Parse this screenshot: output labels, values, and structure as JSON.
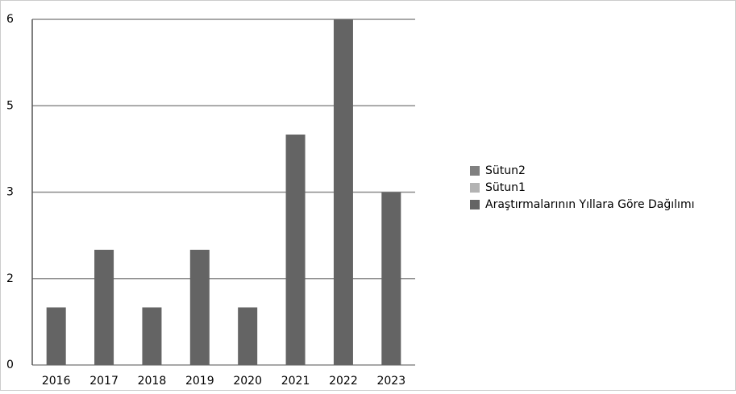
{
  "chart_data": {
    "type": "bar",
    "categories": [
      "2016",
      "2017",
      "2018",
      "2019",
      "2020",
      "2021",
      "2022",
      "2023"
    ],
    "series": [
      {
        "name": "Sütun2",
        "color": "#808080",
        "values": [
          null,
          null,
          null,
          null,
          null,
          null,
          null,
          null
        ]
      },
      {
        "name": "Sütun1",
        "color": "#b3b3b3",
        "values": [
          null,
          null,
          null,
          null,
          null,
          null,
          null,
          null
        ]
      },
      {
        "name": "Araştırmalarının Yıllara Göre Dağılımı",
        "color": "#646464",
        "values": [
          1,
          2,
          1,
          2,
          1,
          4,
          6,
          3
        ]
      }
    ],
    "ylim": [
      0,
      6
    ],
    "yticks": [
      0,
      {
        "value": 1.5,
        "label": "2"
      },
      3,
      {
        "value": 4.5,
        "label": "5"
      },
      6
    ],
    "grid": true,
    "legend": "right"
  }
}
